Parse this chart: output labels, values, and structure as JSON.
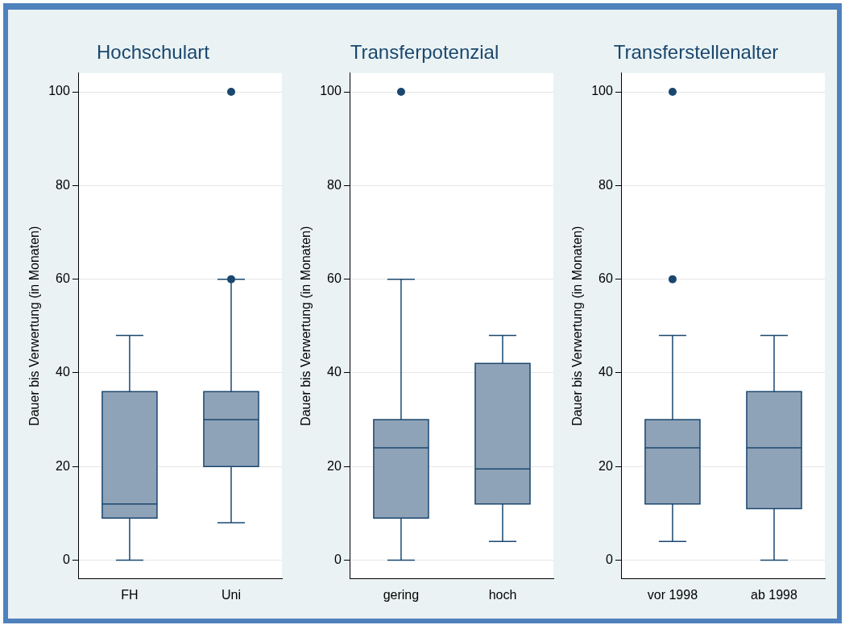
{
  "chart_data": [
    {
      "type": "box",
      "title": "Hochschulart",
      "ylabel": "Dauer bis Verwertung (in Monaten)",
      "categories": [
        "FH",
        "Uni"
      ],
      "ylim": [
        -4,
        104
      ],
      "yticks": [
        0,
        20,
        40,
        60,
        80,
        100
      ],
      "grid": "y",
      "legend": false,
      "color": "#8fa3b8",
      "boxes": [
        {
          "low": 0,
          "q1": 9,
          "median": 12,
          "q3": 36,
          "high": 48
        },
        {
          "low": 8,
          "q1": 20,
          "median": 30,
          "q3": 36,
          "high": 60,
          "outliers": [
            60,
            100
          ]
        }
      ]
    },
    {
      "type": "box",
      "title": "Transferpotenzial",
      "ylabel": "Dauer bis Verwertung (in Monaten)",
      "categories": [
        "gering",
        "hoch"
      ],
      "ylim": [
        -4,
        104
      ],
      "yticks": [
        0,
        20,
        40,
        60,
        80,
        100
      ],
      "grid": "y",
      "legend": false,
      "color": "#8fa3b8",
      "boxes": [
        {
          "low": 0,
          "q1": 9,
          "median": 24,
          "q3": 30,
          "high": 60,
          "outliers": [
            100
          ]
        },
        {
          "low": 4,
          "q1": 12,
          "median": 19.5,
          "q3": 42,
          "high": 48
        }
      ]
    },
    {
      "type": "box",
      "title": "Transferstellenalter",
      "ylabel": "Dauer bis Verwertung (in Monaten)",
      "categories": [
        "vor 1998",
        "ab 1998"
      ],
      "ylim": [
        -4,
        104
      ],
      "yticks": [
        0,
        20,
        40,
        60,
        80,
        100
      ],
      "grid": "y",
      "legend": false,
      "color": "#8fa3b8",
      "boxes": [
        {
          "low": 4,
          "q1": 12,
          "median": 24,
          "q3": 30,
          "high": 48,
          "outliers": [
            60,
            100
          ]
        },
        {
          "low": 0,
          "q1": 11,
          "median": 24,
          "q3": 36,
          "high": 48
        }
      ]
    }
  ]
}
